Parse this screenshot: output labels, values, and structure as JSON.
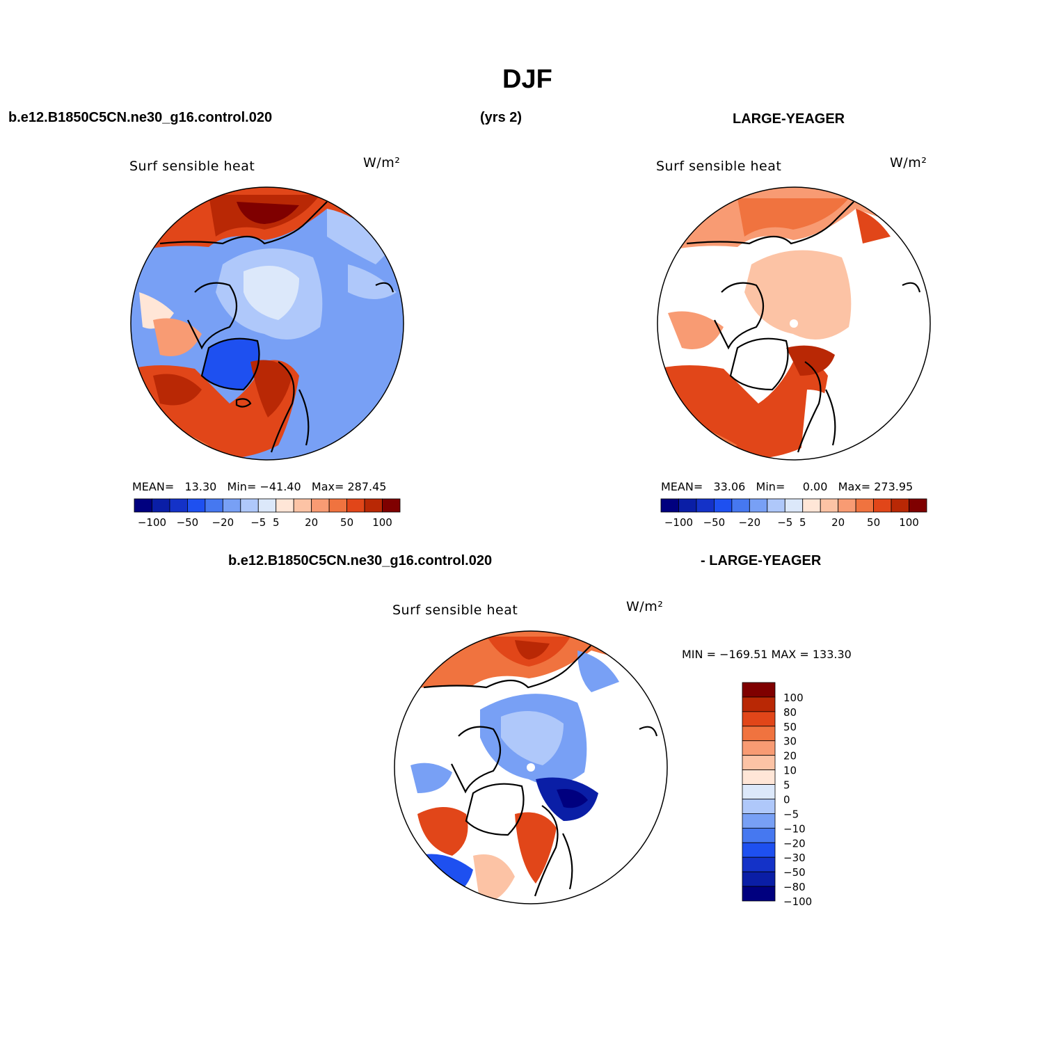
{
  "title": "DJF",
  "top": {
    "case_left": "b.e12.B1850C5CN.ne30_g16.control.020",
    "years": "(yrs 2)",
    "case_right": "LARGE-YEAGER"
  },
  "bottom": {
    "case_left": "b.e12.B1850C5CN.ne30_g16.control.020",
    "case_right": "- LARGE-YEAGER"
  },
  "panels": [
    {
      "variable": "Surf sensible heat",
      "units": "W/m²",
      "stats": "MEAN=   13.30   Min= −41.40   Max= 287.45"
    },
    {
      "variable": "Surf sensible heat",
      "units": "W/m²",
      "stats": "MEAN=   33.06   Min=     0.00   Max= 273.95"
    },
    {
      "variable": "Surf sensible heat",
      "units": "W/m²",
      "stats": "MIN = −169.51 MAX = 133.30"
    }
  ],
  "colors": {
    "palette": [
      "#00007f",
      "#0a1ea6",
      "#1432c8",
      "#1e50f0",
      "#4678f0",
      "#78a0f5",
      "#afc8fa",
      "#dce8fa",
      "#ffe6d7",
      "#fcc3a5",
      "#f89b73",
      "#f0733f",
      "#e14619",
      "#b92805",
      "#7f0000"
    ],
    "land_outline": "#000000"
  },
  "chart_data": [
    {
      "type": "heatmap",
      "projection": "north-polar-stereographic",
      "title": "Surf sensible heat",
      "units": "W/m²",
      "colorbar_ticks": [
        "−100",
        "−50",
        "−20",
        "−5",
        "5",
        "20",
        "50",
        "100"
      ],
      "mean": 13.3,
      "min": -41.4,
      "max": 287.45
    },
    {
      "type": "heatmap",
      "projection": "north-polar-stereographic",
      "title": "Surf sensible heat",
      "units": "W/m²",
      "colorbar_ticks": [
        "−100",
        "−50",
        "−20",
        "−5",
        "5",
        "20",
        "50",
        "100"
      ],
      "mean": 33.06,
      "min": 0.0,
      "max": 273.95
    },
    {
      "type": "heatmap",
      "projection": "north-polar-stereographic",
      "title": "Surf sensible heat",
      "units": "W/m²",
      "colorbar_levels": [
        "100",
        "80",
        "50",
        "30",
        "20",
        "10",
        "5",
        "0",
        "−5",
        "−10",
        "−20",
        "−30",
        "−50",
        "−80",
        "−100"
      ],
      "min": -169.51,
      "max": 133.3
    }
  ]
}
